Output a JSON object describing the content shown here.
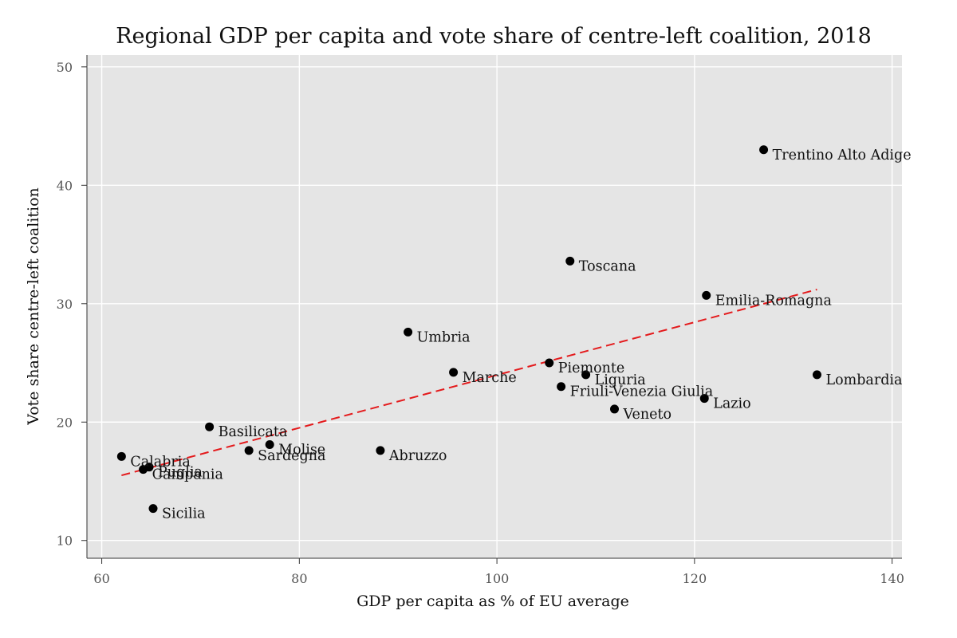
{
  "chart_data": {
    "type": "scatter",
    "title": "Regional GDP per capita and vote share of centre-left coalition, 2018",
    "xlabel": "GDP per capita as % of EU average",
    "ylabel": "Vote share centre-left coalition",
    "xlim": [
      58.5,
      141
    ],
    "ylim": [
      8.5,
      51
    ],
    "xticks": [
      60,
      80,
      100,
      120,
      140
    ],
    "yticks": [
      10,
      20,
      30,
      40,
      50
    ],
    "grid": true,
    "background": "#e5e5e5",
    "point_color": "#000000",
    "fit_line_color": "#e41a1c",
    "points": [
      {
        "label": "Trentino Alto Adige",
        "x": 127.0,
        "y": 43.0
      },
      {
        "label": "Toscana",
        "x": 107.4,
        "y": 33.6
      },
      {
        "label": "Emilia-Romagna",
        "x": 121.2,
        "y": 30.7
      },
      {
        "label": "Umbria",
        "x": 91.0,
        "y": 27.6
      },
      {
        "label": "Piemonte",
        "x": 105.3,
        "y": 25.0
      },
      {
        "label": "Marche",
        "x": 95.6,
        "y": 24.2
      },
      {
        "label": "Liguria",
        "x": 109.0,
        "y": 24.0
      },
      {
        "label": "Lombardia",
        "x": 132.4,
        "y": 24.0
      },
      {
        "label": "Friuli-Venezia Giulia",
        "x": 106.5,
        "y": 23.0
      },
      {
        "label": "Lazio",
        "x": 121.0,
        "y": 22.0
      },
      {
        "label": "Veneto",
        "x": 111.9,
        "y": 21.1
      },
      {
        "label": "Basilicata",
        "x": 70.9,
        "y": 19.6
      },
      {
        "label": "Molise",
        "x": 77.0,
        "y": 18.1
      },
      {
        "label": "Sardegna",
        "x": 74.9,
        "y": 17.6
      },
      {
        "label": "Abruzzo",
        "x": 88.2,
        "y": 17.6
      },
      {
        "label": "Calabria",
        "x": 62.0,
        "y": 17.1
      },
      {
        "label": "Puglia",
        "x": 64.8,
        "y": 16.2
      },
      {
        "label": "Campania",
        "x": 64.2,
        "y": 16.0
      },
      {
        "label": "Sicilia",
        "x": 65.2,
        "y": 12.7
      }
    ],
    "fit_line": {
      "style": "dashed",
      "x": [
        62.0,
        132.4
      ],
      "y": [
        15.5,
        31.2
      ]
    }
  }
}
